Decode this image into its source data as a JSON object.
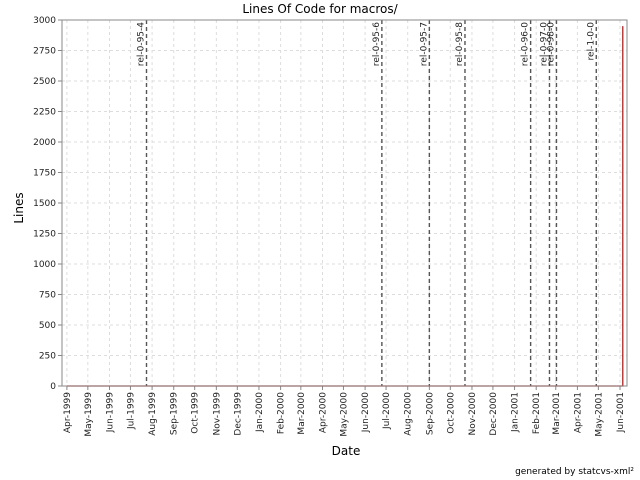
{
  "chart_data": {
    "type": "line",
    "title": "Lines Of Code for macros/",
    "xlabel": "Date",
    "ylabel": "Lines",
    "ylim": [
      0,
      3000
    ],
    "y_ticks": [
      0,
      250,
      500,
      750,
      1000,
      1250,
      1500,
      1750,
      2000,
      2250,
      2500,
      2750,
      3000
    ],
    "x_ticks": [
      "Apr-1999",
      "May-1999",
      "Jun-1999",
      "Jul-1999",
      "Aug-1999",
      "Sep-1999",
      "Oct-1999",
      "Nov-1999",
      "Dec-1999",
      "Jan-2000",
      "Feb-2000",
      "Mar-2000",
      "Apr-2000",
      "May-2000",
      "Jun-2000",
      "Jul-2000",
      "Aug-2000",
      "Sep-2000",
      "Oct-2000",
      "Nov-2000",
      "Dec-2000",
      "Jan-2001",
      "Feb-2001",
      "Mar-2001",
      "Apr-2001",
      "May-2001",
      "Jun-2001"
    ],
    "grid": true,
    "series": [
      {
        "color": "#cc0000",
        "points": [
          {
            "x": "1999-04-01",
            "y": 0
          },
          {
            "x": "2001-06-05",
            "y": 0
          },
          {
            "x": "2001-06-05",
            "y": 2950
          }
        ]
      }
    ],
    "markers": [
      {
        "label": "rel-0-95-4",
        "x": "1999-07-24"
      },
      {
        "label": "rel-0-95-6",
        "x": "2000-06-25"
      },
      {
        "label": "rel-0-95-7",
        "x": "2000-09-01"
      },
      {
        "label": "rel-0-95-8",
        "x": "2000-10-22"
      },
      {
        "label": "rel-0-96-0",
        "x": "2001-01-24"
      },
      {
        "label": "rel-0-97-0",
        "x": "2001-02-20"
      },
      {
        "label": "rel-0-98-0",
        "x": "2001-03-02"
      },
      {
        "label": "rel-1-0-0",
        "x": "2001-04-28"
      }
    ]
  },
  "footer": {
    "credit": "generated by statcvs-xml²"
  }
}
